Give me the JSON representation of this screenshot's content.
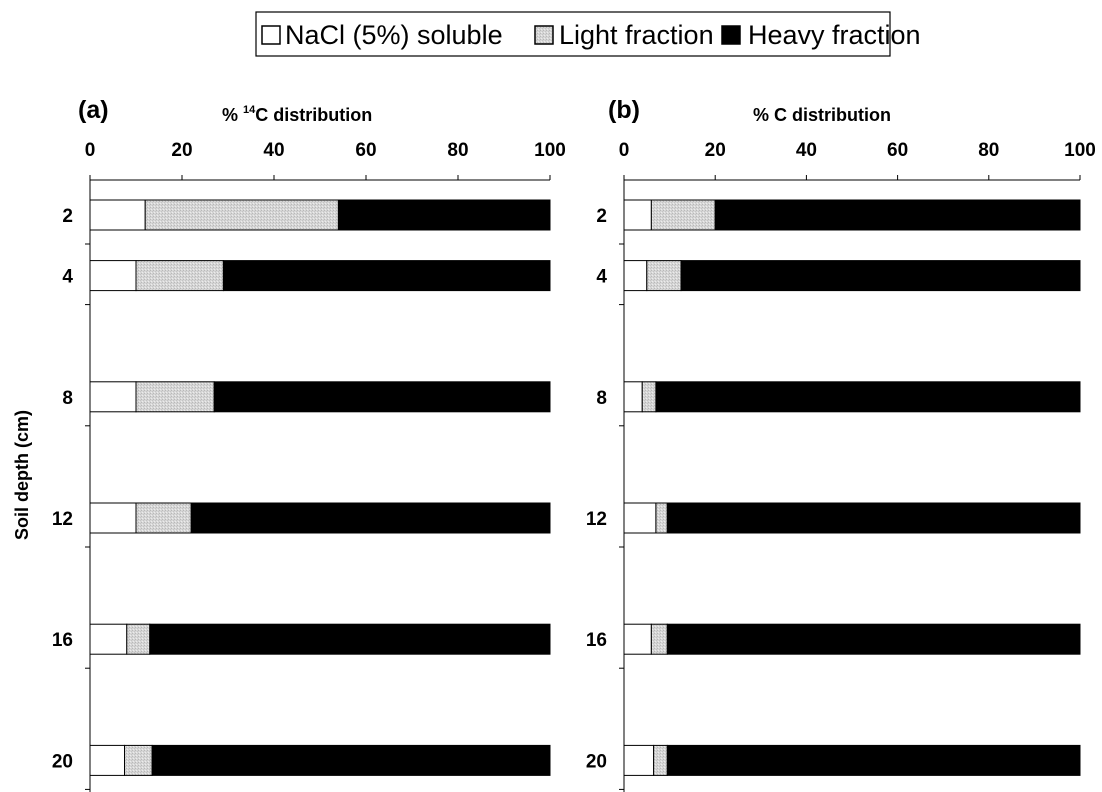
{
  "legend": {
    "items": [
      {
        "label": "NaCl (5%) soluble",
        "color": "#ffffff"
      },
      {
        "label": "Light fraction",
        "color": "#d4d4d4"
      },
      {
        "label": "Heavy fraction",
        "color": "#000000"
      }
    ]
  },
  "y_axis_label": "Soil depth (cm)",
  "chart_data": [
    {
      "type": "bar",
      "orientation": "horizontal",
      "stacked": true,
      "panel_label": "(a)",
      "title_prefix": "% ",
      "title_superscript": "14",
      "title_suffix": "C distribution",
      "xlabel": "",
      "ylabel": "Soil depth (cm)",
      "xlim": [
        0,
        100
      ],
      "x_ticks": [
        0,
        20,
        40,
        60,
        80,
        100
      ],
      "categories": [
        "2",
        "4",
        "8",
        "12",
        "16",
        "20"
      ],
      "category_values": [
        2,
        4,
        8,
        12,
        16,
        20
      ],
      "series": [
        {
          "name": "NaCl (5%) soluble",
          "values": [
            12,
            10,
            10,
            10,
            8,
            7.5
          ]
        },
        {
          "name": "Light fraction",
          "values": [
            42,
            19,
            17,
            12,
            5,
            6
          ]
        },
        {
          "name": "Heavy fraction",
          "values": [
            46,
            71,
            73,
            78,
            87,
            86.5
          ]
        }
      ]
    },
    {
      "type": "bar",
      "orientation": "horizontal",
      "stacked": true,
      "panel_label": "(b)",
      "title_prefix": "% C distribution",
      "title_superscript": "",
      "title_suffix": "",
      "xlabel": "",
      "ylabel": "Soil depth (cm)",
      "xlim": [
        0,
        100
      ],
      "x_ticks": [
        0,
        20,
        40,
        60,
        80,
        100
      ],
      "categories": [
        "2",
        "4",
        "8",
        "12",
        "16",
        "20"
      ],
      "category_values": [
        2,
        4,
        8,
        12,
        16,
        20
      ],
      "series": [
        {
          "name": "NaCl (5%) soluble",
          "values": [
            6,
            5,
            4,
            7,
            6,
            6.5
          ]
        },
        {
          "name": "Light fraction",
          "values": [
            14,
            7.5,
            3,
            2.5,
            3.5,
            3
          ]
        },
        {
          "name": "Heavy fraction",
          "values": [
            80,
            87.5,
            93,
            90.5,
            90.5,
            90.5
          ]
        }
      ]
    }
  ]
}
